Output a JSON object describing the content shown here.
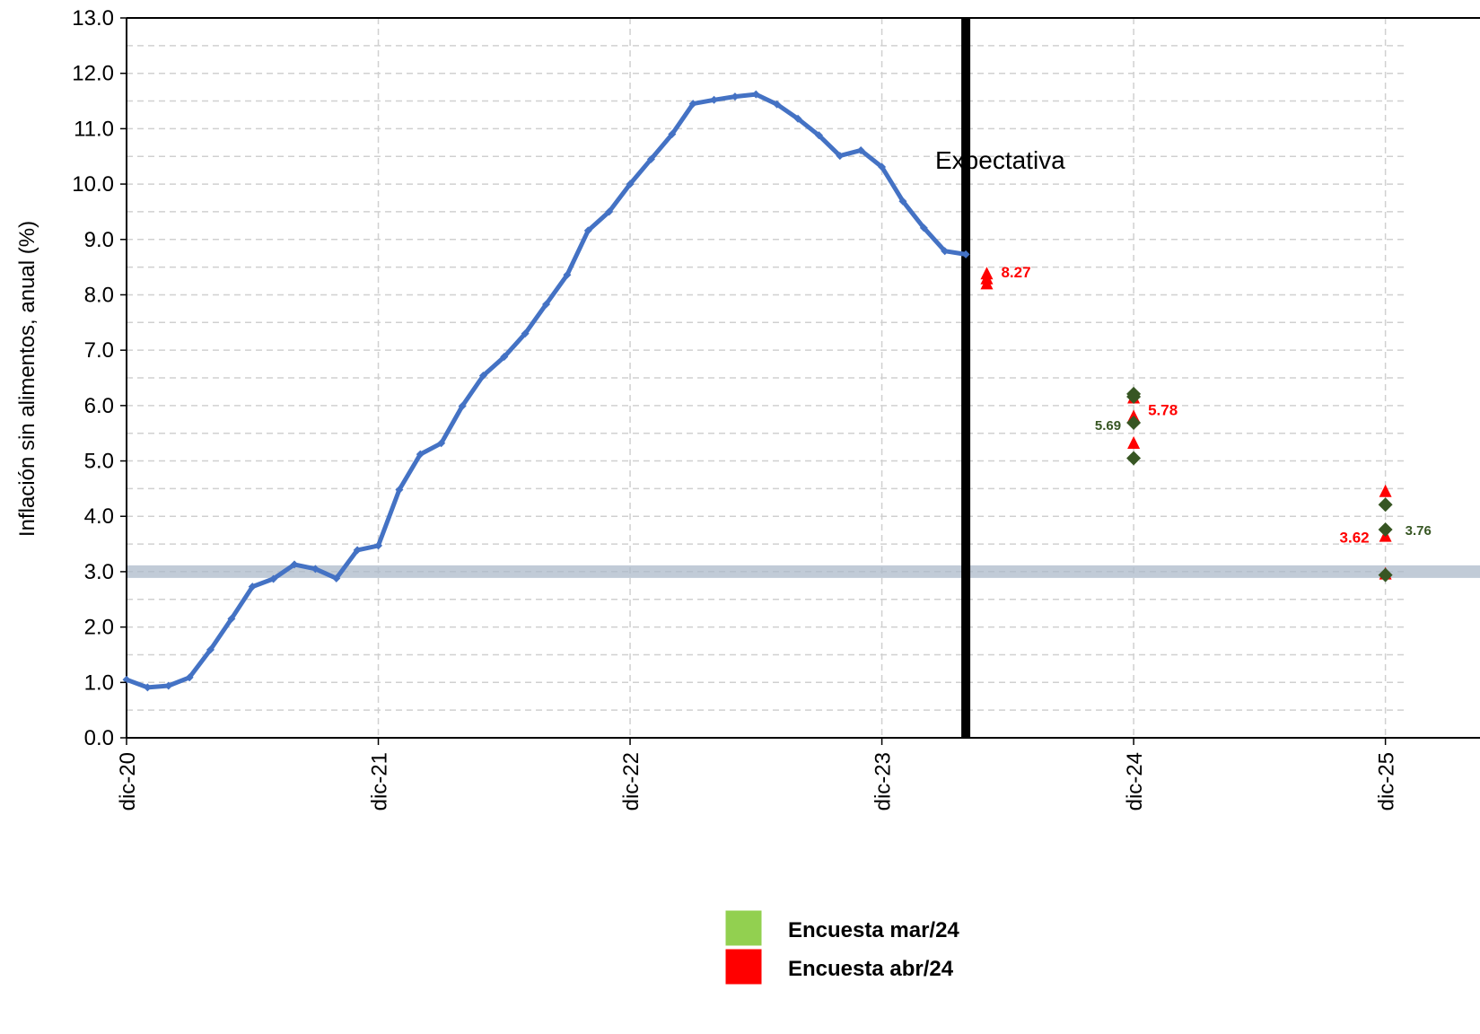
{
  "chart_data": {
    "type": "line",
    "ylabel": "Inflación  sin alimentos,  anual  (%)",
    "ylim": [
      0,
      13
    ],
    "yticks": [
      "0.0",
      "1.0",
      "2.0",
      "3.0",
      "4.0",
      "5.0",
      "6.0",
      "7.0",
      "8.0",
      "9.0",
      "10.0",
      "11.0",
      "12.0",
      "13.0"
    ],
    "x_range_months": [
      "dic-20",
      "ene-26"
    ],
    "xtick_labels": [
      "dic-20",
      "dic-21",
      "dic-22",
      "dic-23",
      "dic-24",
      "dic-25"
    ],
    "grid": true,
    "legend_position": "bottom-center",
    "target_band": {
      "value": 3.0,
      "color": "#acb9ca"
    },
    "expectation_marker": {
      "label": "Expectativa",
      "x": "abr-24"
    },
    "series": [
      {
        "type": "line",
        "color": "#4472c4",
        "x": [
          "dic-20",
          "ene-21",
          "feb-21",
          "mar-21",
          "abr-21",
          "may-21",
          "jun-21",
          "jul-21",
          "ago-21",
          "sep-21",
          "oct-21",
          "nov-21",
          "dic-21",
          "ene-22",
          "feb-22",
          "mar-22",
          "abr-22",
          "may-22",
          "jun-22",
          "jul-22",
          "ago-22",
          "sep-22",
          "oct-22",
          "nov-22",
          "dic-22",
          "ene-23",
          "feb-23",
          "mar-23",
          "abr-23",
          "may-23",
          "jun-23",
          "jul-23",
          "ago-23",
          "sep-23",
          "oct-23",
          "nov-23",
          "dic-23",
          "ene-24",
          "feb-24",
          "mar-24",
          "abr-24"
        ],
        "values": [
          1.05,
          0.91,
          0.94,
          1.09,
          1.59,
          2.15,
          2.73,
          2.87,
          3.13,
          3.05,
          2.88,
          3.39,
          3.47,
          4.48,
          5.12,
          5.32,
          5.99,
          6.54,
          6.88,
          7.3,
          7.83,
          8.36,
          9.16,
          9.5,
          10.0,
          10.45,
          10.9,
          11.45,
          11.52,
          11.58,
          11.62,
          11.44,
          11.18,
          10.88,
          10.51,
          10.61,
          10.31,
          9.69,
          9.21,
          8.79,
          8.73
        ]
      },
      {
        "name": "Encuesta mar/24",
        "color": "#92d050",
        "marker_color": "#375623",
        "points": [
          {
            "x": "dic-24",
            "values": [
              6.21,
              6.16,
              5.69,
              5.05
            ],
            "label": "5.69"
          },
          {
            "x": "dic-25",
            "values": [
              4.21,
              3.76,
              2.94
            ],
            "label": "3.76"
          }
        ]
      },
      {
        "name": "Encuesta abr/24",
        "color": "#ff0000",
        "points": [
          {
            "x": "may-24",
            "values": [
              8.36,
              8.27,
              8.18
            ],
            "label": "8.27"
          },
          {
            "x": "dic-24",
            "values": [
              6.12,
              5.78,
              5.3
            ],
            "label": "5.78"
          },
          {
            "x": "dic-25",
            "values": [
              4.43,
              3.62,
              2.94
            ],
            "label": "3.62"
          }
        ]
      }
    ]
  }
}
